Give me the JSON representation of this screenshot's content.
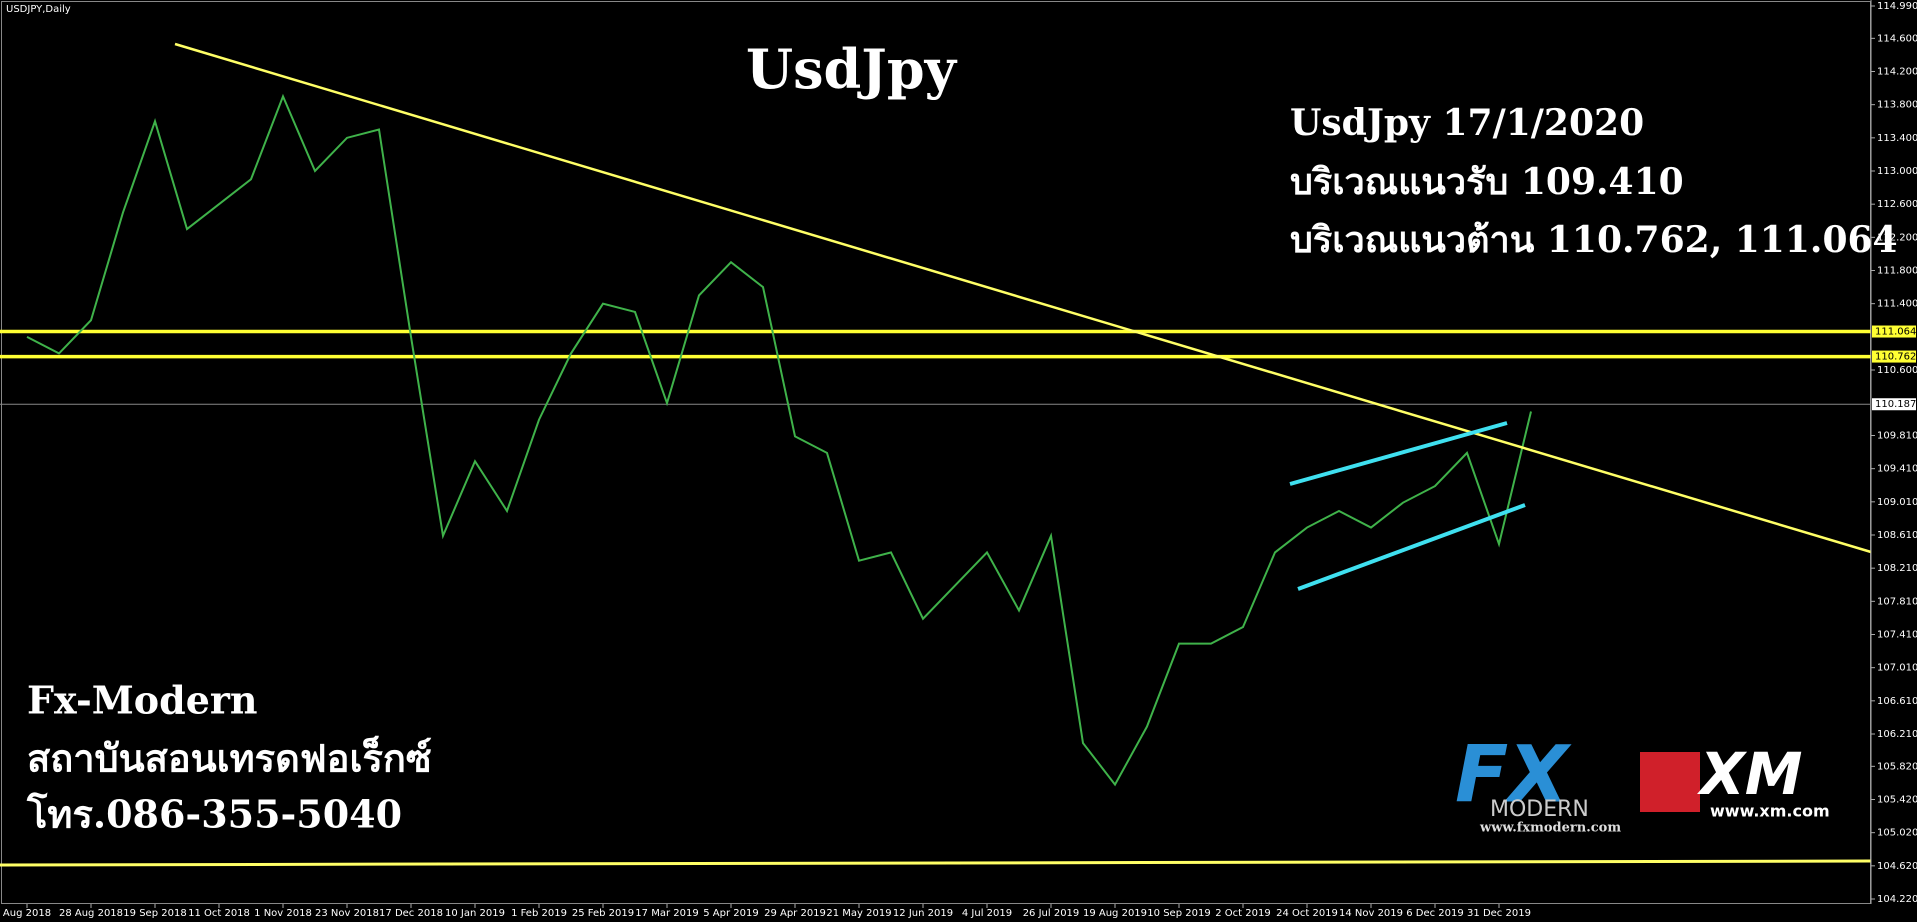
{
  "chart_data": {
    "type": "line",
    "title": "UsdJpy",
    "symbol": "USDJPY,Daily",
    "categories": [
      "Aug 2018",
      null,
      "28 Aug 2018",
      null,
      "19 Sep 2018",
      null,
      "11 Oct 2018",
      null,
      "1 Nov 2018",
      null,
      "23 Nov 2018",
      null,
      "17 Dec 2018",
      null,
      "10 Jan 2019",
      null,
      "1 Feb 2019",
      null,
      "25 Feb 2019",
      null,
      "17 Mar 2019",
      null,
      "5 Apr 2019",
      null,
      "29 Apr 2019",
      null,
      "21 May 2019",
      null,
      "12 Jun 2019",
      null,
      "4 Jul 2019",
      null,
      "26 Jul 2019",
      null,
      "19 Aug 2019",
      null,
      "10 Sep 2019",
      null,
      "2 Oct 2019",
      null,
      "24 Oct 2019",
      null,
      "14 Nov 2019",
      null,
      "6 Dec 2019",
      null,
      "31 Dec 2019",
      null
    ],
    "series": [
      {
        "color": "#3fb24a",
        "values": [
          111.0,
          110.8,
          111.2,
          112.5,
          113.6,
          112.3,
          112.6,
          112.9,
          113.9,
          113.0,
          113.4,
          113.5,
          111.0,
          108.6,
          109.5,
          108.9,
          110.0,
          110.8,
          111.4,
          111.3,
          110.2,
          111.5,
          111.9,
          111.6,
          109.8,
          109.6,
          108.3,
          108.4,
          107.6,
          108.0,
          108.4,
          107.7,
          108.6,
          106.1,
          105.6,
          106.3,
          107.3,
          107.3,
          107.5,
          108.4,
          108.7,
          108.9,
          108.7,
          109.0,
          109.2,
          109.6,
          108.5,
          110.1
        ]
      }
    ],
    "ylim": [
      104.22,
      114.99
    ],
    "yticks": [
      {
        "value": 114.99,
        "label": "114.990"
      },
      {
        "value": 114.6,
        "label": "114.600"
      },
      {
        "value": 114.2,
        "label": "114.200"
      },
      {
        "value": 113.8,
        "label": "113.800"
      },
      {
        "value": 113.4,
        "label": "113.400"
      },
      {
        "value": 113.0,
        "label": "113.000"
      },
      {
        "value": 112.6,
        "label": "112.600"
      },
      {
        "value": 112.2,
        "label": "112.200"
      },
      {
        "value": 111.8,
        "label": "111.800"
      },
      {
        "value": 111.4,
        "label": "111.400"
      },
      {
        "value": 110.6,
        "label": "110.600"
      },
      {
        "value": 109.81,
        "label": "109.810"
      },
      {
        "value": 109.41,
        "label": "109.410"
      },
      {
        "value": 109.01,
        "label": "109.010"
      },
      {
        "value": 108.61,
        "label": "108.610"
      },
      {
        "value": 108.21,
        "label": "108.210"
      },
      {
        "value": 107.81,
        "label": "107.810"
      },
      {
        "value": 107.41,
        "label": "107.410"
      },
      {
        "value": 107.01,
        "label": "107.010"
      },
      {
        "value": 106.61,
        "label": "106.610"
      },
      {
        "value": 106.21,
        "label": "106.210"
      },
      {
        "value": 105.82,
        "label": "105.820"
      },
      {
        "value": 105.42,
        "label": "105.420"
      },
      {
        "value": 105.02,
        "label": "105.020"
      },
      {
        "value": 104.62,
        "label": "104.620"
      },
      {
        "value": 104.22,
        "label": "104.220"
      }
    ],
    "levels": [
      {
        "value": 111.064,
        "label": "111.064",
        "color": "#ffff33"
      },
      {
        "value": 110.762,
        "label": "110.762",
        "color": "#ffff33"
      },
      {
        "value": 110.187,
        "label": "110.187",
        "color": "#ffffff"
      }
    ],
    "annotations": [
      "UsdJpy 17/1/2020",
      "บริเวณแนวรับ 109.410",
      "บริเวณแนวต้าน 110.762, 111.064"
    ],
    "footer": [
      "Fx-Modern",
      "สถาบันสอนเทรดฟอเร็กซ์",
      "โทร.086-355-5040"
    ],
    "logos": {
      "fx": "FX",
      "modern": "MODERN",
      "fx_url": "www.fxmodern.com",
      "xm": "XM",
      "xm_url": "www.xm.com"
    }
  }
}
